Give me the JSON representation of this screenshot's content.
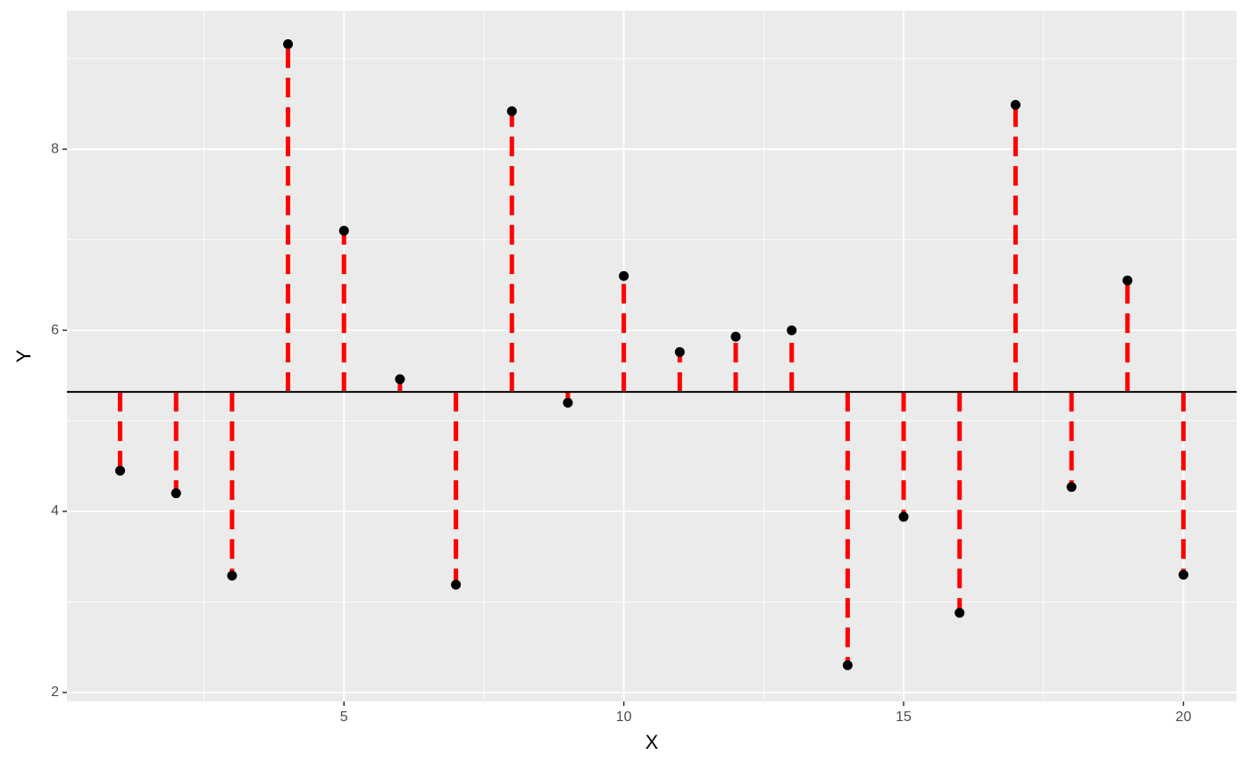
{
  "chart_data": {
    "type": "scatter",
    "x_label": "X",
    "y_label": "Y",
    "x": [
      1,
      2,
      3,
      4,
      5,
      6,
      7,
      8,
      9,
      10,
      11,
      12,
      13,
      14,
      15,
      16,
      17,
      18,
      19,
      20
    ],
    "y": [
      4.45,
      4.2,
      3.29,
      9.16,
      7.1,
      5.46,
      3.19,
      8.42,
      5.2,
      6.6,
      5.76,
      5.93,
      6.0,
      2.3,
      3.94,
      2.88,
      8.49,
      4.27,
      6.55,
      3.3
    ],
    "hline": 5.32,
    "point_color": "#000000",
    "segment_color": "#ff0000",
    "hline_color": "#000000",
    "xlim": [
      0.05,
      20.95
    ],
    "ylim": [
      1.9,
      9.53
    ],
    "xticks": [
      5,
      10,
      15,
      20
    ],
    "yticks": [
      2,
      4,
      6,
      8
    ],
    "grid": true,
    "minor_grid": true
  }
}
